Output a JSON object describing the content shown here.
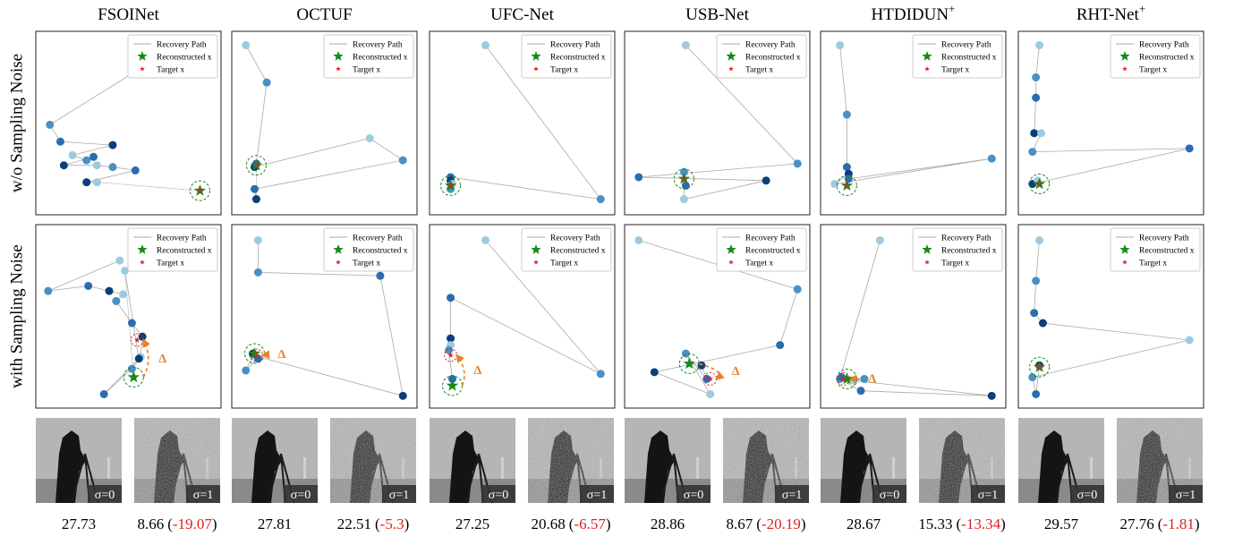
{
  "columns": [
    {
      "title": "FSOINet"
    },
    {
      "title": "OCTUF"
    },
    {
      "title": "UFC-Net"
    },
    {
      "title": "USB-Net"
    },
    {
      "title": "HTDIDUN",
      "sup": "+"
    },
    {
      "title": "RHT-Net",
      "sup": "+"
    }
  ],
  "rows": [
    "w/o Sampling Noise",
    "with Sampling Noise"
  ],
  "legend": [
    "Recovery Path",
    "Reconstructed x",
    "Target x"
  ],
  "annotation": "Δ",
  "palette": [
    "#9ecae1",
    "#4a90c4",
    "#2b6cb0",
    "#0b3f7a"
  ],
  "chart_data": [
    {
      "type": "scatter",
      "x": [
        78,
        5,
        11,
        41,
        18,
        26,
        30,
        13,
        32,
        41,
        54,
        26,
        32
      ],
      "y": [
        96,
        49,
        39,
        37,
        31,
        28,
        30,
        25,
        25,
        24,
        22,
        15,
        15
      ],
      "reconstructed": [
        91,
        10
      ],
      "target": [
        91,
        10
      ],
      "xlim": [
        0,
        100
      ],
      "ylim": [
        0,
        100
      ]
    },
    {
      "type": "scatter",
      "x": [
        5,
        17,
        11,
        10,
        76,
        95,
        10,
        11
      ],
      "y": [
        96,
        74,
        26,
        24,
        41,
        28,
        11,
        5
      ],
      "reconstructed": [
        11,
        25
      ],
      "target": [
        11,
        25
      ],
      "xlim": [
        0,
        100
      ],
      "ylim": [
        0,
        100
      ]
    },
    {
      "type": "scatter",
      "x": [
        29,
        95,
        9,
        9,
        10,
        9
      ],
      "y": [
        96,
        5,
        18,
        16,
        14,
        11
      ],
      "reconstructed": [
        9,
        13
      ],
      "target": [
        9,
        13
      ],
      "xlim": [
        0,
        100
      ],
      "ylim": [
        0,
        100
      ]
    },
    {
      "type": "scatter",
      "x": [
        32,
        96,
        5,
        78,
        31,
        31,
        32
      ],
      "y": [
        96,
        26,
        18,
        16,
        5,
        21,
        13
      ],
      "reconstructed": [
        31,
        17
      ],
      "target": [
        31,
        17
      ],
      "xlim": [
        0,
        100
      ],
      "ylim": [
        0,
        100
      ]
    },
    {
      "type": "scatter",
      "x": [
        8,
        12,
        12,
        13,
        5,
        95,
        13
      ],
      "y": [
        96,
        55,
        24,
        20,
        14,
        29,
        17
      ],
      "reconstructed": [
        12,
        13
      ],
      "target": [
        12,
        13
      ],
      "xlim": [
        0,
        100
      ],
      "ylim": [
        0,
        100
      ]
    },
    {
      "type": "scatter",
      "x": [
        9,
        7,
        7,
        6,
        10,
        5,
        95,
        5,
        8
      ],
      "y": [
        96,
        77,
        65,
        44,
        44,
        33,
        35,
        14,
        16
      ],
      "reconstructed": [
        9,
        14
      ],
      "target": [
        9,
        14
      ],
      "xlim": [
        0,
        100
      ],
      "ylim": [
        0,
        100
      ]
    },
    {
      "type": "scatter",
      "x": [
        45,
        4,
        27,
        39,
        47,
        43,
        52,
        58,
        57,
        52,
        36,
        56,
        48
      ],
      "y": [
        83,
        65,
        68,
        65,
        63,
        59,
        46,
        38,
        26,
        19,
        4,
        25,
        77
      ],
      "reconstructed": [
        53,
        14
      ],
      "target": [
        55,
        36
      ],
      "xlim": [
        0,
        100
      ],
      "ylim": [
        0,
        100
      ]
    },
    {
      "type": "scatter",
      "x": [
        12,
        12,
        82,
        95,
        9,
        5,
        12,
        9
      ],
      "y": [
        95,
        76,
        74,
        3,
        27,
        18,
        25,
        28
      ],
      "reconstructed": [
        10,
        28
      ],
      "target": [
        11,
        27
      ],
      "xlim": [
        0,
        100
      ],
      "ylim": [
        0,
        100
      ]
    },
    {
      "type": "scatter",
      "x": [
        29,
        95,
        9,
        9,
        9,
        8,
        10
      ],
      "y": [
        95,
        16,
        61,
        37,
        33,
        30,
        13
      ],
      "reconstructed": [
        10,
        9
      ],
      "target": [
        9,
        27
      ],
      "xlim": [
        0,
        100
      ],
      "ylim": [
        0,
        100
      ]
    },
    {
      "type": "scatter",
      "x": [
        5,
        96,
        86,
        14,
        46,
        32,
        44,
        41
      ],
      "y": [
        95,
        66,
        33,
        17,
        4,
        28,
        13,
        21
      ],
      "reconstructed": [
        34,
        22
      ],
      "target": [
        46,
        13
      ],
      "xlim": [
        0,
        100
      ],
      "ylim": [
        0,
        100
      ]
    },
    {
      "type": "scatter",
      "x": [
        31,
        8,
        20,
        95,
        16,
        22,
        9
      ],
      "y": [
        95,
        13,
        6,
        3,
        12,
        13,
        14
      ],
      "reconstructed": [
        12,
        13
      ],
      "target": [
        10,
        13
      ],
      "xlim": [
        0,
        100
      ],
      "ylim": [
        0,
        100
      ]
    },
    {
      "type": "scatter",
      "x": [
        9,
        7,
        6,
        11,
        95,
        5,
        7,
        9
      ],
      "y": [
        95,
        71,
        52,
        46,
        36,
        14,
        4,
        21
      ],
      "reconstructed": [
        9,
        20
      ],
      "target": [
        9,
        20
      ],
      "xlim": [
        0,
        100
      ],
      "ylim": [
        0,
        100
      ]
    }
  ],
  "image_labels": [
    "σ=0",
    "σ=1"
  ],
  "bracket": [
    "(",
    ")"
  ],
  "scores": [
    {
      "clean": 27.73,
      "noisy": 8.66,
      "drop": -19.07
    },
    {
      "clean": 27.81,
      "noisy": 22.51,
      "drop": -5.3
    },
    {
      "clean": 27.25,
      "noisy": 20.68,
      "drop": -6.57
    },
    {
      "clean": 28.86,
      "noisy": 8.67,
      "drop": -20.19
    },
    {
      "clean": 28.67,
      "noisy": 15.33,
      "drop": -13.34
    },
    {
      "clean": 29.57,
      "noisy": 27.76,
      "drop": -1.81
    }
  ]
}
